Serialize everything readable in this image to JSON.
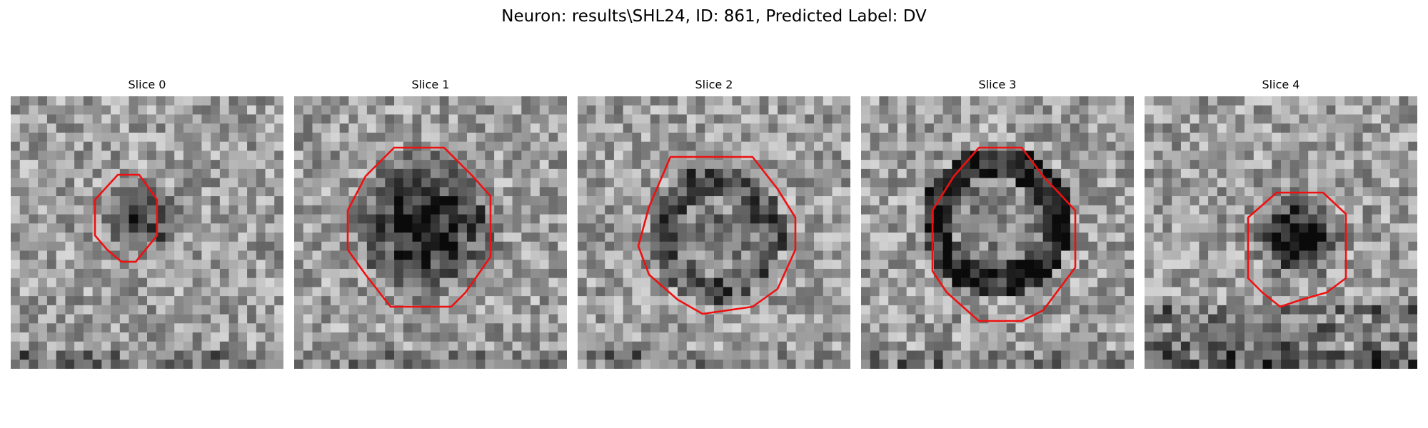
{
  "figure": {
    "title": "Neuron: results\\SHL24, ID: 861, Predicted Label: DV"
  },
  "slices": [
    {
      "label": "Slice 0"
    },
    {
      "label": "Slice 1"
    },
    {
      "label": "Slice 2"
    },
    {
      "label": "Slice 3"
    },
    {
      "label": "Slice 4"
    }
  ],
  "style": {
    "contour_color": "#ee1111",
    "colormap": "grayscale"
  }
}
